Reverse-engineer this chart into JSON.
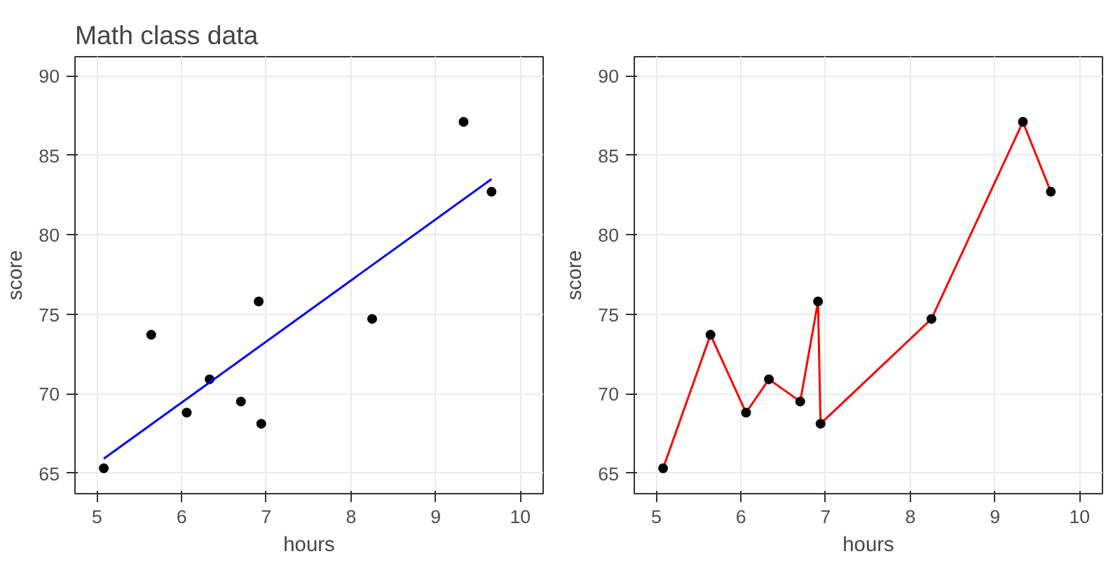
{
  "chart_data": [
    {
      "type": "scatter",
      "title": "Math class data",
      "xlabel": "hours",
      "ylabel": "score",
      "xlim": [
        4.74,
        10.27
      ],
      "ylim": [
        63.7,
        91.2
      ],
      "xticks": [
        5,
        6,
        7,
        8,
        9,
        10
      ],
      "yticks": [
        65,
        70,
        75,
        80,
        85,
        90
      ],
      "grid": true,
      "series": [
        {
          "color": "#000000",
          "marker": "circle",
          "x": [
            5.08,
            5.64,
            6.06,
            6.33,
            6.7,
            6.91,
            6.94,
            8.25,
            9.33,
            9.66
          ],
          "values": [
            65.3,
            73.7,
            68.8,
            70.9,
            69.5,
            75.8,
            68.1,
            74.7,
            87.1,
            82.7
          ]
        },
        {
          "type": "line",
          "color": "#0000ff",
          "x": [
            5.08,
            9.66
          ],
          "values": [
            65.9,
            83.5
          ]
        }
      ]
    },
    {
      "type": "scatter",
      "xlabel": "hours",
      "ylabel": "score",
      "xlim": [
        4.74,
        10.27
      ],
      "ylim": [
        63.7,
        91.2
      ],
      "xticks": [
        5,
        6,
        7,
        8,
        9,
        10
      ],
      "yticks": [
        65,
        70,
        75,
        80,
        85,
        90
      ],
      "grid": true,
      "series": [
        {
          "type": "line",
          "color": "#ff0000",
          "x": [
            5.08,
            5.64,
            6.06,
            6.33,
            6.7,
            6.91,
            6.94,
            8.25,
            9.33,
            9.66
          ],
          "values": [
            65.3,
            73.7,
            68.8,
            70.9,
            69.5,
            75.8,
            68.1,
            74.7,
            87.1,
            82.7
          ]
        },
        {
          "color": "#000000",
          "marker": "circle",
          "x": [
            5.08,
            5.64,
            6.06,
            6.33,
            6.7,
            6.91,
            6.94,
            8.25,
            9.33,
            9.66
          ],
          "values": [
            65.3,
            73.7,
            68.8,
            70.9,
            69.5,
            75.8,
            68.1,
            74.7,
            87.1,
            82.7
          ]
        }
      ]
    }
  ]
}
